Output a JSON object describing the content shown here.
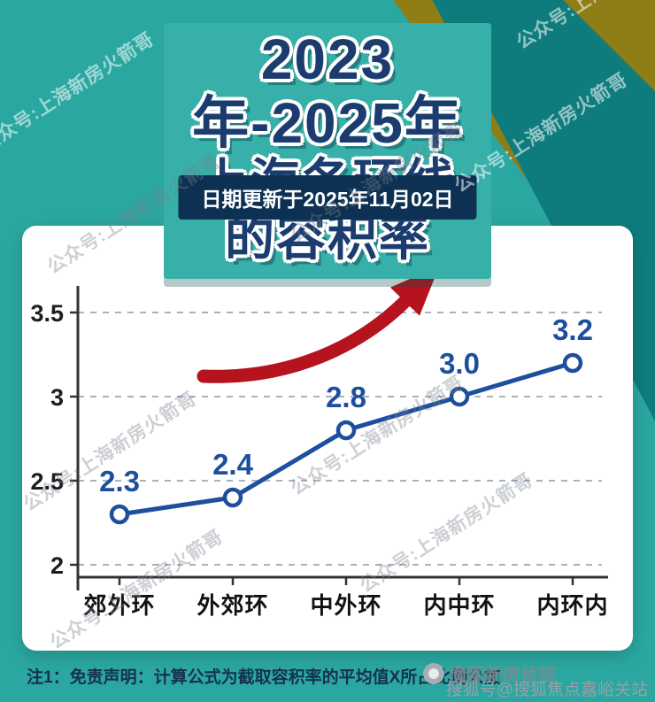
{
  "page": {
    "title_line1": "2023年-2025年",
    "title_line2": "上海各环线的容积率",
    "date_banner": "日期更新于2025年11月02日",
    "watermark": "公众号:上海新房火箭哥",
    "note": "注1：免责声明：计算公式为截取容积率的平均值X所占比例公加",
    "bottom_watermark": "魔都新房侦探",
    "credit": "搜狐号@搜狐焦点嘉峪关站"
  },
  "colors": {
    "teal_bg": "#2ba7a1",
    "teal_dark": "#0e7c7c",
    "gold": "#8f7d15",
    "title_navy": "#1b3c6e",
    "banner_bg": "#0c3152",
    "card_bg": "#ffffff",
    "line": "#1d4f9e",
    "data_label": "#1d4f9e",
    "arrow": "#b5131d",
    "grid": "#a8b2bf",
    "axis": "#333333"
  },
  "chart_data": {
    "type": "line",
    "title": "2023年-2025年上海各环线的容积率",
    "categories": [
      "郊外环",
      "外郊环",
      "中外环",
      "内中环",
      "内环内"
    ],
    "series": [
      {
        "name": "容积率",
        "values": [
          2.3,
          2.4,
          2.8,
          3.0,
          3.2
        ]
      }
    ],
    "xlabel": "",
    "ylabel": "",
    "ylim": [
      2,
      3.5
    ],
    "yticks": [
      3.5,
      3,
      2.5,
      2
    ],
    "grid": "dashed-horizontal",
    "legend_position": "top",
    "marker": "open-circle",
    "annotations": [
      "red upward trend arrow"
    ]
  }
}
